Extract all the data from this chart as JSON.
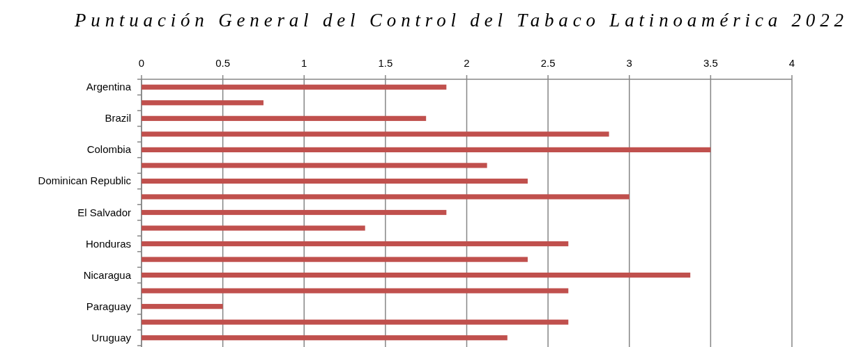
{
  "chart_data": {
    "type": "bar",
    "orientation": "horizontal",
    "title": "Puntuación General del Control del Tabaco Latinoamérica 2022",
    "categories": [
      "Argentina",
      null,
      "Brazil",
      null,
      "Colombia",
      null,
      "Dominican Republic",
      null,
      "El Salvador",
      null,
      "Honduras",
      null,
      "Nicaragua",
      null,
      "Paraguay",
      null,
      "Uruguay"
    ],
    "values": [
      1.875,
      0.75,
      1.75,
      2.875,
      3.5,
      2.125,
      2.375,
      3,
      1.875,
      1.375,
      2.625,
      2.375,
      3.375,
      2.625,
      0.5,
      2.625,
      2.25
    ],
    "color": "#c0504d",
    "xlim": [
      0,
      4
    ],
    "xticks": [
      0,
      0.5,
      1,
      1.5,
      2,
      2.5,
      3,
      3.5,
      4
    ],
    "grid": "x"
  }
}
